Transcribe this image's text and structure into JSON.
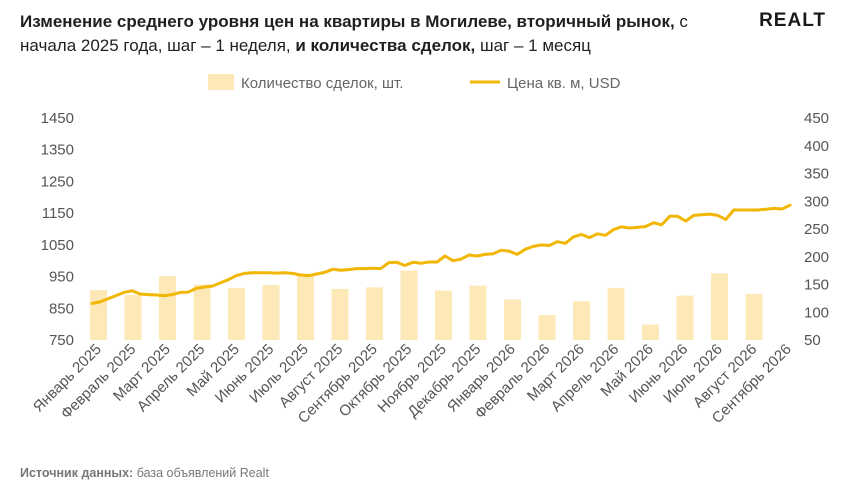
{
  "header": {
    "title_bold_1": "Изменение среднего уровня цен на квартиры в Могилеве, вторичный рынок,",
    "title_normal_1": " с начала 2025 года, шаг – 1 неделя,",
    "title_bold_2": " и количества сделок,",
    "title_normal_2": " шаг – 1 месяц",
    "logo": "REALT"
  },
  "footer": {
    "source_label": "Источник данных:",
    "source_text": " база объявлений Realt"
  },
  "colors": {
    "line": "#f2b705",
    "bars": "#fde9b8",
    "grid": "#dddddd"
  },
  "chart_data": {
    "type": "bar+line",
    "legend": {
      "placement": "top-center",
      "bars_label": "Количество сделок, шт.",
      "line_label": "Цена кв. м, USD"
    },
    "categories": [
      "Январь 2025",
      "Февраль 2025",
      "Март 2025",
      "Апрель 2025",
      "Май 2025",
      "Июнь 2025",
      "Июль 2025",
      "Август 2025",
      "Сентябрь 2025",
      "Октябрь 2025",
      "Ноябрь 2025",
      "Декабрь 2025",
      "Январь 2026",
      "Февраль 2026",
      "Март 2026",
      "Апрель 2026",
      "Май 2026",
      "Июнь 2026",
      "Июль 2026",
      "Август 2026",
      "Сентябрь 2026"
    ],
    "y_left": {
      "min": 750,
      "max": 1450,
      "ticks": [
        750,
        850,
        950,
        1050,
        1150,
        1250,
        1350,
        1450
      ]
    },
    "y_right": {
      "min": 50,
      "max": 450,
      "ticks": [
        50,
        100,
        150,
        200,
        250,
        300,
        350,
        400,
        450
      ]
    },
    "grid": false,
    "bars": {
      "name": "Количество сделок, шт.",
      "axis": "right",
      "values": [
        140,
        131,
        165,
        150,
        144,
        149,
        166,
        142,
        145,
        175,
        139,
        148,
        123,
        95,
        120,
        144,
        78,
        130,
        170,
        133
      ]
    },
    "line": {
      "name": "Цена кв. м, USD",
      "axis": "left",
      "values": [
        865,
        870,
        880,
        890,
        900,
        905,
        895,
        893,
        892,
        890,
        893,
        900,
        901,
        913,
        917,
        920,
        930,
        940,
        953,
        960,
        962,
        962,
        962,
        961,
        962,
        960,
        955,
        953,
        958,
        963,
        973,
        970,
        972,
        975,
        975,
        976,
        975,
        994,
        995,
        985,
        995,
        992,
        996,
        996,
        1015,
        1000,
        1005,
        1018,
        1015,
        1020,
        1022,
        1033,
        1030,
        1020,
        1036,
        1045,
        1050,
        1048,
        1060,
        1055,
        1075,
        1083,
        1073,
        1085,
        1080,
        1098,
        1107,
        1103,
        1105,
        1108,
        1120,
        1113,
        1140,
        1140,
        1125,
        1143,
        1145,
        1147,
        1143,
        1130,
        1160,
        1160,
        1160,
        1160,
        1162,
        1165,
        1163,
        1175
      ]
    }
  }
}
